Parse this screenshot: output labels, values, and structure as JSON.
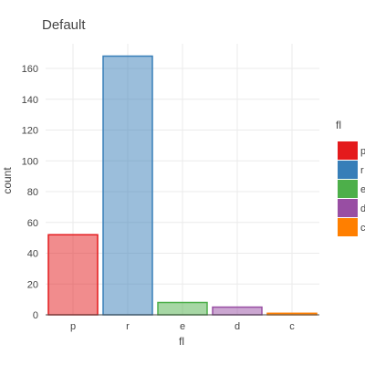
{
  "chart_data": {
    "type": "bar",
    "title": "Default",
    "xlabel": "fl",
    "ylabel": "count",
    "categories": [
      "p",
      "r",
      "e",
      "d",
      "c"
    ],
    "values": [
      52,
      168,
      8,
      5,
      1
    ],
    "colors": [
      "#e41a1c",
      "#377eb8",
      "#4daf4a",
      "#984ea3",
      "#ff7f00"
    ],
    "ylim": [
      0,
      176
    ],
    "yticks": [
      0,
      20,
      40,
      60,
      80,
      100,
      120,
      140,
      160
    ],
    "grid": true,
    "legend": {
      "title": "fl",
      "position": "right",
      "entries": [
        "p",
        "r",
        "e",
        "d",
        "c"
      ]
    }
  }
}
